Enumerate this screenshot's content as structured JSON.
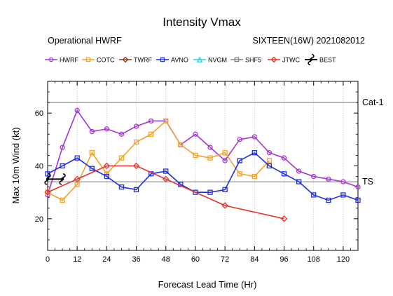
{
  "chart_data": {
    "type": "line",
    "title": "Intensity Vmax",
    "subtitle_left": "Operational HWRF",
    "subtitle_right": "SIXTEEN(16W) 2021082012",
    "xlabel": "Forecast Lead Time (Hr)",
    "ylabel": "Max 10m Wind (kt)",
    "xlim": [
      0,
      126
    ],
    "ylim": [
      8,
      72
    ],
    "xticks": [
      0,
      12,
      24,
      36,
      48,
      60,
      72,
      84,
      96,
      108,
      120
    ],
    "yticks": [
      20,
      40,
      60
    ],
    "grid": true,
    "legend_position": "top",
    "reference_lines": [
      {
        "label": "Cat-1",
        "value": 64
      },
      {
        "label": "TS",
        "value": 34
      }
    ],
    "series": [
      {
        "name": "HWRF",
        "color": "#a435d6",
        "marker": "circle",
        "x": [
          0,
          6,
          12,
          18,
          24,
          30,
          36,
          42,
          48,
          54,
          60,
          66,
          72,
          78,
          84,
          90,
          96,
          102,
          108,
          114,
          120,
          126
        ],
        "y": [
          29,
          47,
          61,
          53,
          54,
          52,
          55,
          57,
          57,
          48,
          52,
          47,
          42,
          50,
          51,
          45,
          43,
          38,
          36,
          35,
          34,
          32
        ]
      },
      {
        "name": "COTC",
        "color": "#f5a12a",
        "marker": "square",
        "x": [
          0,
          6,
          12,
          18,
          24,
          30,
          36,
          42,
          48,
          54,
          60,
          66,
          72,
          78,
          84,
          90
        ],
        "y": [
          30,
          27,
          33,
          45,
          37,
          43,
          49,
          52,
          57,
          48,
          44,
          43,
          45,
          37,
          36,
          42
        ]
      },
      {
        "name": "TWRF",
        "color": "#8b3a1a",
        "marker": "diamond",
        "x": [],
        "y": []
      },
      {
        "name": "AVNO",
        "color": "#1f2fe0",
        "marker": "square",
        "x": [
          0,
          6,
          12,
          18,
          24,
          30,
          36,
          42,
          48,
          54,
          60,
          66,
          72,
          78,
          84,
          90,
          96,
          102,
          108,
          114,
          120,
          126
        ],
        "y": [
          37,
          40,
          43,
          39,
          36,
          32,
          31,
          37,
          38,
          33,
          30,
          30,
          31,
          42,
          45,
          40,
          37,
          34,
          29,
          27,
          29,
          27
        ]
      },
      {
        "name": "NVGM",
        "color": "#22d3e6",
        "marker": "triangle",
        "x": [],
        "y": []
      },
      {
        "name": "SHF5",
        "color": "#808080",
        "marker": "square",
        "x": [],
        "y": []
      },
      {
        "name": "JTWC",
        "color": "#e8302a",
        "marker": "diamond",
        "x": [
          0,
          12,
          24,
          36,
          48,
          72,
          96
        ],
        "y": [
          30,
          35,
          40,
          40,
          35,
          25,
          20
        ]
      },
      {
        "name": "BEST",
        "color": "#000000",
        "marker": "hurricane",
        "x": [
          0,
          6
        ],
        "y": [
          35,
          35
        ]
      }
    ]
  }
}
